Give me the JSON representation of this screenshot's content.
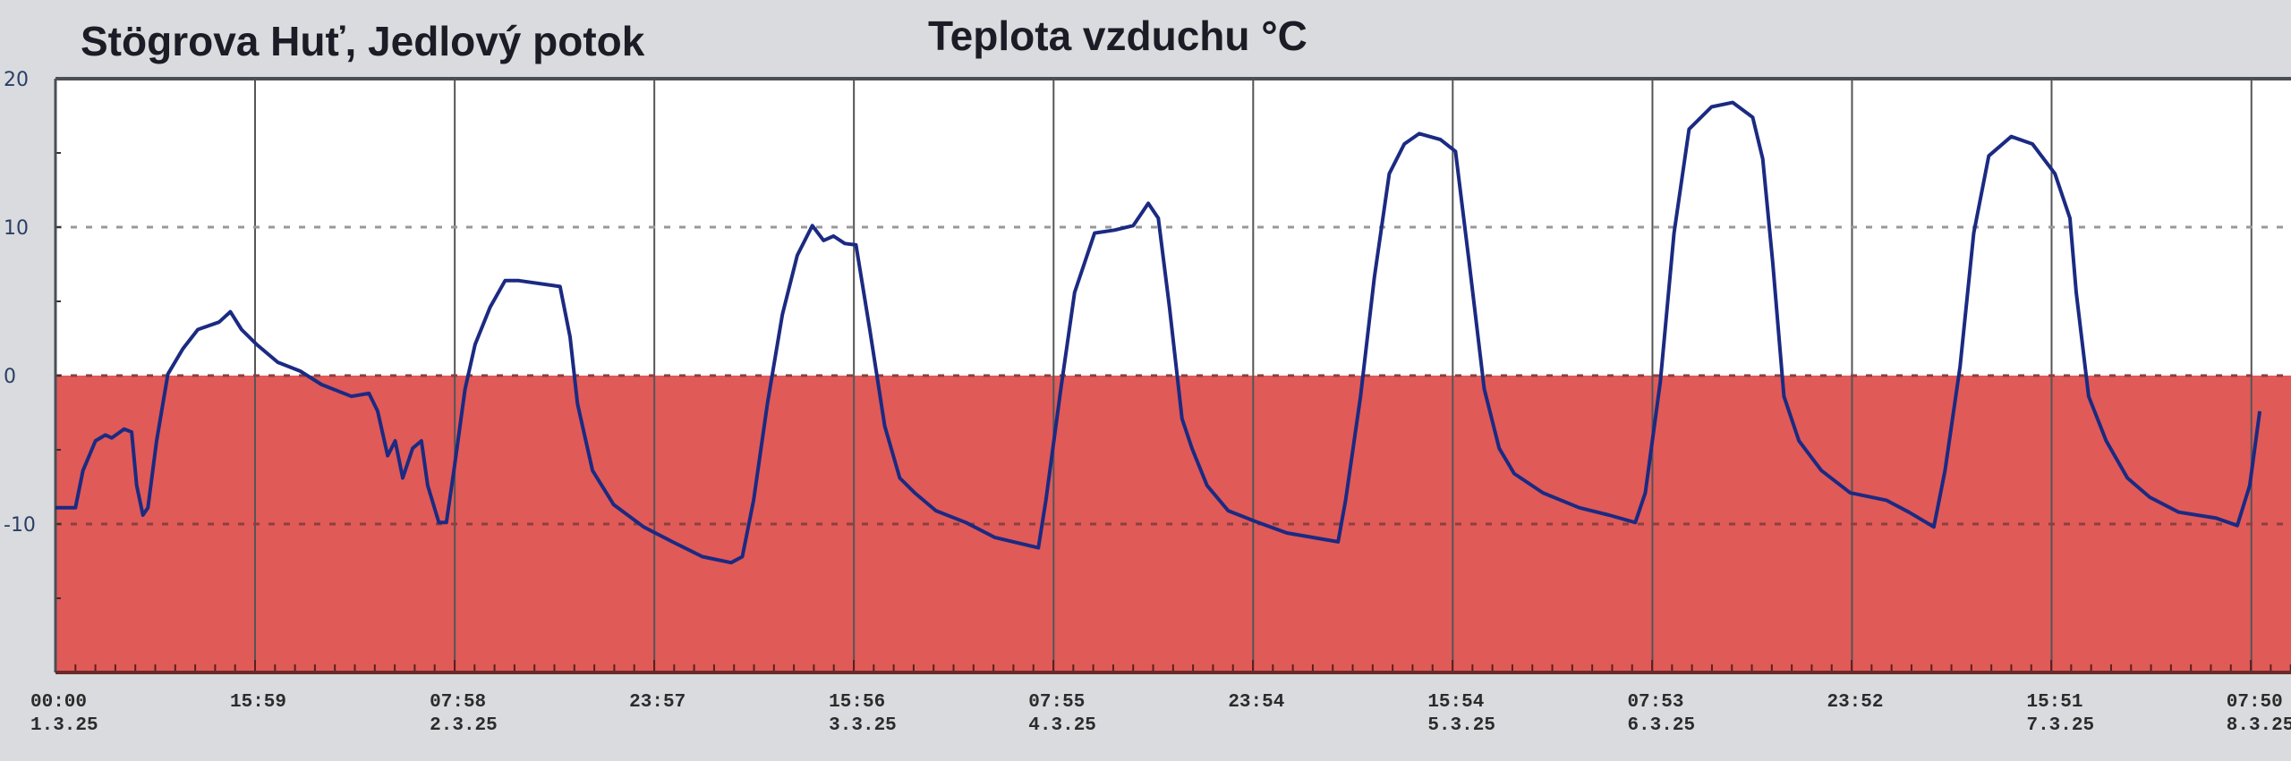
{
  "chart_data": {
    "type": "line",
    "title": "Teplota vzduchu °C",
    "subtitle": "Stögrova Huť, Jedlový potok",
    "xlabel": "",
    "ylabel": "",
    "x_unit": "hours since 00:00 1.3.25",
    "xlim": [
      0,
      179
    ],
    "ylim": [
      -20,
      20
    ],
    "y_ticks": [
      20,
      10,
      0,
      -10
    ],
    "grid": true,
    "below_zero_fill": "#e05a58",
    "line_color": "#1b2a82",
    "x_ticks": [
      {
        "x": 0,
        "time": "00:00",
        "date": "1.3.25"
      },
      {
        "x": 15.98,
        "time": "15:59",
        "date": ""
      },
      {
        "x": 31.97,
        "time": "07:58",
        "date": "2.3.25"
      },
      {
        "x": 47.95,
        "time": "23:57",
        "date": ""
      },
      {
        "x": 63.93,
        "time": "15:56",
        "date": "3.3.25"
      },
      {
        "x": 79.92,
        "time": "07:55",
        "date": "4.3.25"
      },
      {
        "x": 95.9,
        "time": "23:54",
        "date": ""
      },
      {
        "x": 111.88,
        "time": "15:54",
        "date": "5.3.25"
      },
      {
        "x": 127.87,
        "time": "07:53",
        "date": "6.3.25"
      },
      {
        "x": 143.85,
        "time": "23:52",
        "date": ""
      },
      {
        "x": 159.83,
        "time": "15:51",
        "date": "7.3.25"
      },
      {
        "x": 175.83,
        "time": "07:50",
        "date": "8.3.25"
      }
    ],
    "series": [
      {
        "name": "Teplota vzduchu",
        "points": [
          [
            0,
            -8.9
          ],
          [
            1.6,
            -8.9
          ],
          [
            2.2,
            -6.4
          ],
          [
            3.2,
            -4.4
          ],
          [
            4.0,
            -4.0
          ],
          [
            4.5,
            -4.2
          ],
          [
            5.5,
            -3.6
          ],
          [
            6.1,
            -3.8
          ],
          [
            6.5,
            -7.4
          ],
          [
            7.0,
            -9.4
          ],
          [
            7.4,
            -8.9
          ],
          [
            8.1,
            -4.4
          ],
          [
            9.0,
            0.1
          ],
          [
            10.2,
            1.8
          ],
          [
            11.4,
            3.1
          ],
          [
            13.1,
            3.6
          ],
          [
            14.0,
            4.3
          ],
          [
            14.9,
            3.1
          ],
          [
            16.1,
            2.1
          ],
          [
            17.8,
            0.9
          ],
          [
            19.6,
            0.3
          ],
          [
            21.3,
            -0.6
          ],
          [
            23.7,
            -1.4
          ],
          [
            25.1,
            -1.2
          ],
          [
            25.8,
            -2.4
          ],
          [
            26.6,
            -5.4
          ],
          [
            27.2,
            -4.4
          ],
          [
            27.8,
            -6.9
          ],
          [
            28.6,
            -4.9
          ],
          [
            29.3,
            -4.4
          ],
          [
            29.8,
            -7.4
          ],
          [
            30.7,
            -9.9
          ],
          [
            31.3,
            -9.9
          ],
          [
            31.9,
            -6.4
          ],
          [
            32.8,
            -0.9
          ],
          [
            33.6,
            2.1
          ],
          [
            34.8,
            4.6
          ],
          [
            36.0,
            6.4
          ],
          [
            37.1,
            6.4
          ],
          [
            40.4,
            6.0
          ],
          [
            41.2,
            2.6
          ],
          [
            41.8,
            -1.9
          ],
          [
            43.0,
            -6.4
          ],
          [
            44.7,
            -8.7
          ],
          [
            47.1,
            -10.2
          ],
          [
            49.4,
            -11.2
          ],
          [
            51.8,
            -12.2
          ],
          [
            54.1,
            -12.6
          ],
          [
            55.0,
            -12.2
          ],
          [
            55.9,
            -8.4
          ],
          [
            57.0,
            -1.9
          ],
          [
            58.2,
            4.1
          ],
          [
            59.4,
            8.1
          ],
          [
            60.6,
            10.1
          ],
          [
            61.5,
            9.1
          ],
          [
            62.3,
            9.4
          ],
          [
            63.2,
            8.9
          ],
          [
            64.1,
            8.8
          ],
          [
            65.2,
            3.1
          ],
          [
            66.4,
            -3.4
          ],
          [
            67.6,
            -6.9
          ],
          [
            68.8,
            -7.9
          ],
          [
            70.5,
            -9.1
          ],
          [
            72.9,
            -9.9
          ],
          [
            75.2,
            -10.9
          ],
          [
            78.7,
            -11.6
          ],
          [
            79.3,
            -8.4
          ],
          [
            80.5,
            -0.9
          ],
          [
            81.6,
            5.6
          ],
          [
            83.2,
            9.6
          ],
          [
            84.8,
            9.8
          ],
          [
            86.3,
            10.1
          ],
          [
            87.5,
            11.6
          ],
          [
            88.3,
            10.6
          ],
          [
            89.2,
            4.6
          ],
          [
            90.2,
            -2.9
          ],
          [
            91.0,
            -4.9
          ],
          [
            92.2,
            -7.4
          ],
          [
            93.9,
            -9.1
          ],
          [
            96.3,
            -9.9
          ],
          [
            98.6,
            -10.6
          ],
          [
            102.7,
            -11.2
          ],
          [
            103.3,
            -8.4
          ],
          [
            104.5,
            -1.4
          ],
          [
            105.6,
            6.6
          ],
          [
            106.8,
            13.6
          ],
          [
            108.0,
            15.6
          ],
          [
            109.2,
            16.3
          ],
          [
            110.9,
            15.9
          ],
          [
            112.1,
            15.1
          ],
          [
            113.2,
            7.6
          ],
          [
            114.4,
            -0.9
          ],
          [
            115.6,
            -4.9
          ],
          [
            116.8,
            -6.6
          ],
          [
            119.1,
            -7.9
          ],
          [
            122.0,
            -8.9
          ],
          [
            124.4,
            -9.4
          ],
          [
            126.5,
            -9.9
          ],
          [
            127.3,
            -7.9
          ],
          [
            128.5,
            -0.4
          ],
          [
            129.6,
            9.6
          ],
          [
            130.8,
            16.6
          ],
          [
            132.6,
            18.1
          ],
          [
            134.3,
            18.4
          ],
          [
            135.9,
            17.4
          ],
          [
            136.7,
            14.6
          ],
          [
            137.5,
            7.6
          ],
          [
            138.4,
            -1.4
          ],
          [
            139.6,
            -4.4
          ],
          [
            141.4,
            -6.4
          ],
          [
            143.7,
            -7.9
          ],
          [
            146.6,
            -8.4
          ],
          [
            148.4,
            -9.2
          ],
          [
            150.4,
            -10.2
          ],
          [
            151.3,
            -6.4
          ],
          [
            152.5,
            0.6
          ],
          [
            153.6,
            9.6
          ],
          [
            154.8,
            14.8
          ],
          [
            156.6,
            16.1
          ],
          [
            158.3,
            15.6
          ],
          [
            160.1,
            13.6
          ],
          [
            161.3,
            10.6
          ],
          [
            161.8,
            5.6
          ],
          [
            162.8,
            -1.4
          ],
          [
            164.2,
            -4.4
          ],
          [
            165.9,
            -6.9
          ],
          [
            167.7,
            -8.2
          ],
          [
            170.0,
            -9.2
          ],
          [
            173.0,
            -9.6
          ],
          [
            174.7,
            -10.1
          ],
          [
            175.7,
            -7.4
          ],
          [
            176.5,
            -2.4
          ]
        ]
      }
    ]
  }
}
